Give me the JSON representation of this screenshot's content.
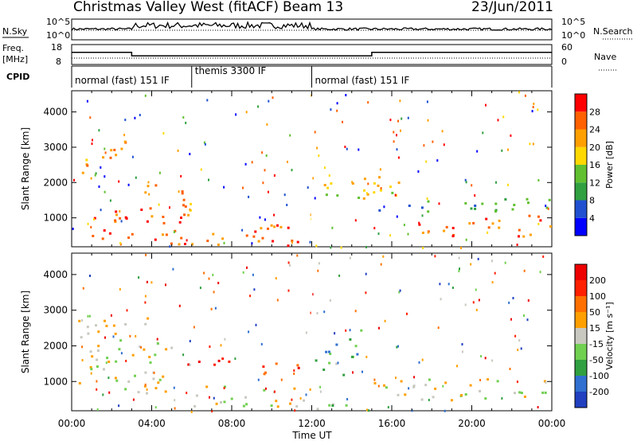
{
  "header": {
    "station": "Christmas Valley West (fitACF)",
    "beam": "Beam 13",
    "date": "23/Jun/2011"
  },
  "chart_data": [
    {
      "type": "line",
      "panel": "noise",
      "left_label": "N.Sky",
      "right_label": "N.Search",
      "left_ticks": [
        "10^5",
        "10^0"
      ],
      "right_ticks": [
        "10^5",
        "10^0"
      ],
      "scale": "log"
    },
    {
      "type": "line",
      "panel": "frequency",
      "left_label": [
        "Freq.",
        "[MHz]"
      ],
      "right_label": "Nave",
      "left_ticks": [
        "18",
        "8"
      ],
      "right_ticks": [
        "60",
        "0"
      ],
      "freq_mhz": [
        {
          "start": "00:00",
          "end": "03:00",
          "value": 14.5
        },
        {
          "start": "03:00",
          "end": "12:00",
          "value": 12.5
        },
        {
          "start": "12:00",
          "end": "15:00",
          "value": 12.5
        },
        {
          "start": "15:00",
          "end": "24:00",
          "value": 14.5
        }
      ]
    },
    {
      "type": "table",
      "panel": "cpid",
      "label": "CPID",
      "modes": [
        {
          "start": "00:00",
          "end": "06:00",
          "text": "normal (fast) 151 IF"
        },
        {
          "start": "06:00",
          "end": "12:00",
          "text": "themis 3300 IF"
        },
        {
          "start": "12:00",
          "end": "24:00",
          "text": "normal (fast) 151 IF"
        }
      ]
    },
    {
      "type": "heatmap",
      "panel": "power",
      "ylabel": "Slant Range [km]",
      "yticks": [
        1000,
        2000,
        3000,
        4000
      ],
      "ylim": [
        180,
        4600
      ],
      "colorbar_label": "Power [dB]",
      "colorbar_ticks": [
        "28",
        "24",
        "20",
        "16",
        "12",
        "8",
        "4"
      ],
      "colors": [
        "#0000ff",
        "#2050d0",
        "#30a040",
        "#60c030",
        "#ffd800",
        "#ffa000",
        "#ff6000",
        "#ff0000"
      ],
      "features": [
        {
          "t0": 0.5,
          "t1": 3.0,
          "r0": 2300,
          "r1": 3200,
          "level": 5
        },
        {
          "t0": 1.0,
          "t1": 6.0,
          "r0": 400,
          "r1": 1300,
          "level": 6
        },
        {
          "t0": 3.5,
          "t1": 6.0,
          "r0": 1200,
          "r1": 2000,
          "level": 5
        },
        {
          "t0": 4.5,
          "t1": 11.0,
          "r0": 250,
          "r1": 900,
          "level": 6
        },
        {
          "t0": 8.0,
          "t1": 12.0,
          "r0": 180,
          "r1": 400,
          "level": 6
        },
        {
          "t0": 12.5,
          "t1": 17.0,
          "r0": 1500,
          "r1": 2300,
          "level": 4
        },
        {
          "t0": 15.0,
          "t1": 24.0,
          "r0": 1200,
          "r1": 1600,
          "level": 2
        },
        {
          "t0": 17.0,
          "t1": 24.0,
          "r0": 500,
          "r1": 1100,
          "level": 6
        }
      ]
    },
    {
      "type": "heatmap",
      "panel": "velocity",
      "ylabel": "Slant Range [km]",
      "yticks": [
        1000,
        2000,
        3000,
        4000
      ],
      "ylim": [
        180,
        4600
      ],
      "colorbar_label": "Velocity [m s⁻¹]",
      "colorbar_ticks": [
        "200",
        "100",
        "50",
        "15",
        "-15",
        "-50",
        "-100",
        "-200"
      ],
      "colors": [
        "#2040c0",
        "#3070d0",
        "#30a040",
        "#70d050",
        "#c8c8c0",
        "#ffa000",
        "#ff7000",
        "#ff2000",
        "#ee0000"
      ],
      "features": [
        {
          "t0": 0.3,
          "t1": 5.0,
          "r0": 700,
          "r1": 2800,
          "level": 4
        },
        {
          "t0": 5.5,
          "t1": 8.0,
          "r0": 1200,
          "r1": 1700,
          "level": 8
        },
        {
          "t0": 6.0,
          "t1": 12.0,
          "r0": 300,
          "r1": 900,
          "level": 4
        },
        {
          "t0": 9.0,
          "t1": 12.0,
          "r0": 1200,
          "r1": 1600,
          "level": 7
        },
        {
          "t0": 12.0,
          "t1": 14.0,
          "r0": 1200,
          "r1": 1700,
          "level": 3
        },
        {
          "t0": 12.5,
          "t1": 14.5,
          "r0": 1600,
          "r1": 2500,
          "level": 2
        },
        {
          "t0": 15.0,
          "t1": 24.0,
          "r0": 500,
          "r1": 1100,
          "level": 4
        },
        {
          "t0": 10.0,
          "t1": 16.0,
          "r0": 180,
          "r1": 400,
          "level": 3
        }
      ]
    }
  ],
  "xaxis": {
    "label": "Time UT",
    "ticks": [
      "00:00",
      "04:00",
      "08:00",
      "12:00",
      "16:00",
      "20:00",
      "00:00"
    ]
  }
}
